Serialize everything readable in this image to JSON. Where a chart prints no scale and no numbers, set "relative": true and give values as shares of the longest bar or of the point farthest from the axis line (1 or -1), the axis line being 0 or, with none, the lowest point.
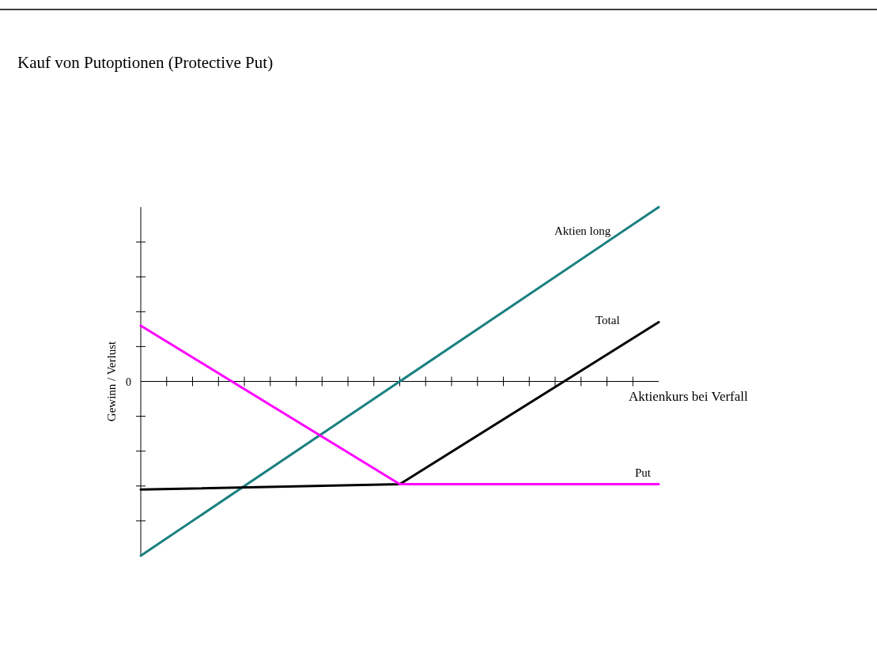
{
  "chart_data": {
    "type": "line",
    "title": "Kauf von Putoptionen (Protective Put)",
    "xlabel": "Aktienkurs bei Verfall",
    "ylabel": "Gewinn / Verlust",
    "relative": true,
    "legend": false,
    "marker": "none",
    "line_style": "solid",
    "categories": [
      null,
      null,
      null
    ],
    "annotations": [
      "0"
    ],
    "series": [
      {
        "name": "Aktien long",
        "color": "#1a8080",
        "values": [
          -1,
          0,
          1
        ]
      },
      {
        "name": "Total",
        "color": "#000000",
        "values": [
          -0.62,
          -0.59,
          0.34
        ]
      },
      {
        "name": "Put",
        "color": "#ff00ff",
        "values": [
          0.32,
          -0.59,
          -0.59
        ]
      }
    ]
  }
}
